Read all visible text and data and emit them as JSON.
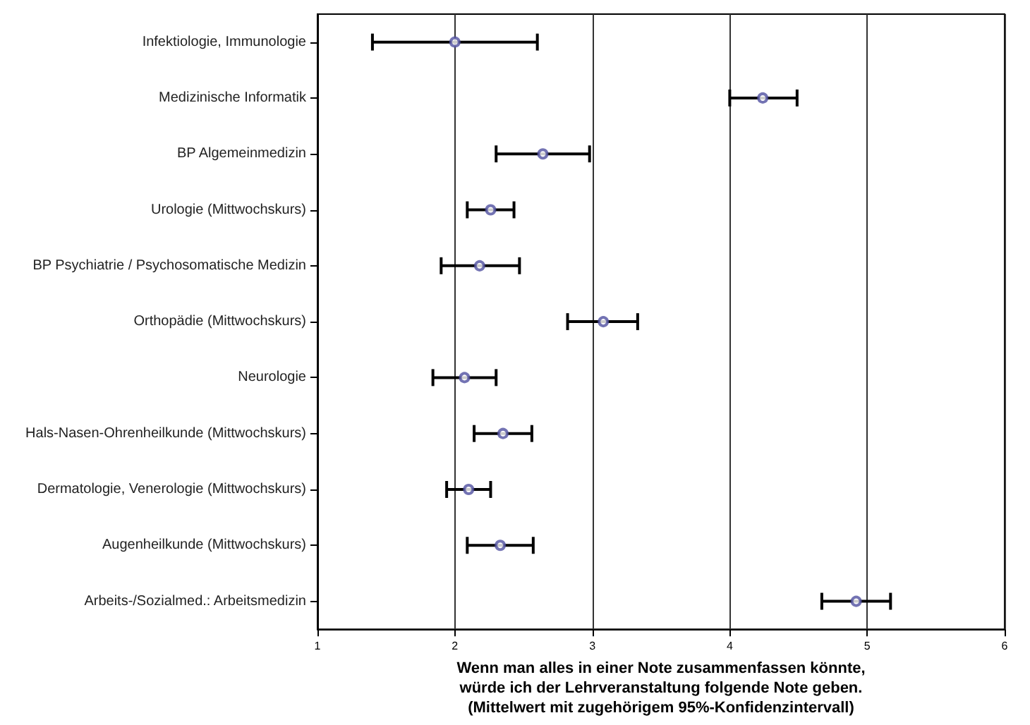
{
  "chart_data": {
    "type": "scatter",
    "orientation": "horizontal",
    "xlabel": "Wenn man alles in einer Note zusammenfassen könnte,\nwürde ich der Lehrveranstaltung folgende Note geben.\n(Mittelwert mit zugehörigem 95%-Konfidenzintervall)",
    "categories": [
      "Infektiologie, Immunologie",
      "Medizinische Informatik",
      "BP Algemeinmedizin",
      "Urologie (Mittwochskurs)",
      "BP Psychiatrie / Psychosomatische Medizin",
      "Orthopädie (Mittwochskurs)",
      "Neurologie",
      "Hals-Nasen-Ohrenheilkunde (Mittwochskurs)",
      "Dermatologie, Venerologie (Mittwochskurs)",
      "Augenheilkunde (Mittwochskurs)",
      "Arbeits-/Sozialmed.: Arbeitsmedizin"
    ],
    "values": [
      2.0,
      4.24,
      2.64,
      2.26,
      2.18,
      3.08,
      2.07,
      2.35,
      2.1,
      2.33,
      4.92
    ],
    "errors": [
      [
        1.4,
        2.6
      ],
      [
        4.0,
        4.49
      ],
      [
        2.3,
        2.98
      ],
      [
        2.09,
        2.43
      ],
      [
        1.9,
        2.47
      ],
      [
        2.82,
        3.33
      ],
      [
        1.84,
        2.3
      ],
      [
        2.14,
        2.56
      ],
      [
        1.94,
        2.26
      ],
      [
        2.09,
        2.57
      ],
      [
        4.67,
        5.17
      ]
    ],
    "color": "#5050a0",
    "xlim": [
      1,
      6
    ],
    "xticks": [
      1,
      2,
      3,
      4,
      5,
      6
    ],
    "grid": "x",
    "marker": "circle"
  }
}
